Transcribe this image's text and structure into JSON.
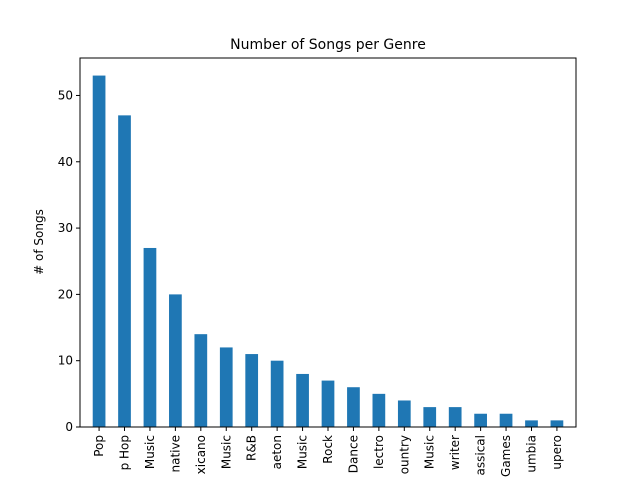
{
  "chart_data": {
    "type": "bar",
    "title": "Number of Songs per Genre",
    "xlabel": "",
    "ylabel": "# of Songs",
    "categories": [
      "Pop",
      "p Hop",
      "Music",
      "native",
      "xicano",
      "Music",
      "R&B",
      "aeton",
      "Music",
      "Rock",
      "Dance",
      "lectro",
      "ountry",
      "Music",
      "writer",
      "assical",
      "Games",
      "umbia",
      "upero"
    ],
    "values": [
      53,
      47,
      27,
      20,
      14,
      12,
      11,
      10,
      8,
      7,
      6,
      5,
      4,
      3,
      3,
      2,
      2,
      1,
      1
    ],
    "ylim": [
      0,
      55.65
    ],
    "yticks": [
      0,
      10,
      20,
      30,
      40,
      50
    ],
    "bar_color": "#1f77b4",
    "grid": false,
    "legend": "none"
  }
}
